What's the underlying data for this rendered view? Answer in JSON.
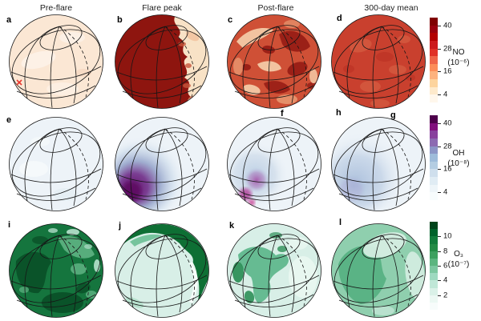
{
  "figure": {
    "columns": [
      "Pre-flare",
      "Flare peak",
      "Post-flare",
      "300-day mean"
    ],
    "panels": [
      {
        "label": "a"
      },
      {
        "label": "b"
      },
      {
        "label": "c"
      },
      {
        "label": "d"
      },
      {
        "label": "e"
      },
      {
        "label": "f"
      },
      {
        "label": "g"
      },
      {
        "label": "h"
      },
      {
        "label": "i"
      },
      {
        "label": "j"
      },
      {
        "label": "k"
      },
      {
        "label": "l"
      }
    ]
  },
  "colorbars": [
    {
      "species": "NO",
      "unit": "(10⁻⁶)",
      "ticks": [
        40,
        28,
        16,
        4
      ],
      "range": [
        0,
        44
      ],
      "colormap": "OrRd",
      "colors": [
        "#7f0000",
        "#99000d",
        "#b30000",
        "#cc1a1c",
        "#e03127",
        "#ef6548",
        "#fc8d59",
        "#fdb27e",
        "#fdd49e",
        "#feeacc",
        "#fff7ec"
      ]
    },
    {
      "species": "OH",
      "unit": "(10⁻⁸)",
      "ticks": [
        40,
        28,
        16,
        4
      ],
      "range": [
        0,
        44
      ],
      "colormap": "BuPu",
      "colors": [
        "#4d004b",
        "#810f7c",
        "#88419d",
        "#8c6bb1",
        "#8c96c6",
        "#9ebcda",
        "#b4cde2",
        "#cfdfed",
        "#e0ecf4",
        "#eef5f9",
        "#f7fcfd"
      ]
    },
    {
      "species": "O₃",
      "unit": "(10⁻⁷)",
      "ticks": [
        10,
        8,
        6,
        4,
        2
      ],
      "range": [
        0,
        12
      ],
      "colormap": "BuGn",
      "colors": [
        "#00441b",
        "#00632b",
        "#127c3b",
        "#238b45",
        "#3da05f",
        "#5bb57f",
        "#7cc7a0",
        "#9ed9c0",
        "#c0e7d7",
        "#daf1e8",
        "#ecf8f3",
        "#f7fcfb"
      ]
    }
  ],
  "palette": {
    "no": {
      "pre_base": "#fbe7d4",
      "day_dark": "#8e150f",
      "night_pale": "#f8e2c6",
      "post_base": "#cf5036",
      "post_dark": "#9b2017",
      "post_light": "#f2c3a0",
      "mean_base": "#c9402e"
    },
    "oh": {
      "base": "#edf3f8",
      "core": "#5e0a63",
      "mean_core": "#a9bedb",
      "magenta": "#a75fae"
    },
    "o3": {
      "pre_dark": "#15753e",
      "pre_darker": "#0a5329",
      "pale": "#d8efe7",
      "crescent": "#0e6f34",
      "swath": "#66bb92",
      "mean_base": "#8fcfae",
      "mean_mid": "#5ab385"
    },
    "marker_red": "#e8372e",
    "graticule": "#161616"
  },
  "chart_data": [
    {
      "type": "heatmap",
      "projection": "orthographic globe",
      "species": "NO",
      "units": "volume mixing ratio (10⁻⁶)",
      "colormap": "OrRd",
      "range": [
        0,
        44
      ],
      "colorbar_ticks": [
        4,
        16,
        28,
        40
      ],
      "panels": [
        {
          "label": "a",
          "column": "Pre-flare",
          "approx_values": "~1–3 everywhere (near-white globe)",
          "annotation": "red × marks flare irradiation point on lower-left limb"
        },
        {
          "label": "b",
          "column": "Flare peak",
          "approx_values": "dayside saturated ≥44 (dark red) over ~75% of disk; pale nightside crescent ~2–8 along right limb with jagged boundary"
        },
        {
          "label": "c",
          "column": "Post-flare",
          "approx_values": "turbulent mottled field ~12–44; dark ~40 filaments upper-right/centre, light ~10–16 swirls lower-left"
        },
        {
          "label": "d",
          "column": "300-day mean",
          "approx_values": "fairly uniform ~28–34 with subtle patchiness"
        }
      ]
    },
    {
      "type": "heatmap",
      "projection": "orthographic globe",
      "species": "OH",
      "units": "volume mixing ratio (10⁻⁸)",
      "colormap": "BuPu",
      "range": [
        0,
        44
      ],
      "colorbar_ticks": [
        4,
        16,
        28,
        40
      ],
      "panels": [
        {
          "label": "e",
          "column": "Pre-flare",
          "approx_values": "~1–2 everywhere (near-white globe)"
        },
        {
          "label": "f",
          "column": "Flare peak",
          "approx_values": "plume peaking ~40+ (dark purple) at lower-left limb, smoothly decaying to ~2 toward upper right"
        },
        {
          "label": "g",
          "column": "Post-flare",
          "approx_values": "weak residual plume ~8–20 (pale blue) lower-left with magenta maxima ~28 near lower-left limb"
        },
        {
          "label": "h",
          "column": "300-day mean",
          "approx_values": "smooth enhancement up to ~10–14 over lower-left hemisphere fading to ~2"
        }
      ]
    },
    {
      "type": "heatmap",
      "projection": "orthographic globe",
      "species": "O₃",
      "units": "volume mixing ratio (10⁻⁷)",
      "colormap": "BuGn",
      "range": [
        0,
        12
      ],
      "colorbar_ticks": [
        2,
        4,
        6,
        8,
        10
      ],
      "panels": [
        {
          "label": "i",
          "column": "Pre-flare",
          "approx_values": "~8–12 mottled dark green over whole disk"
        },
        {
          "label": "j",
          "column": "Flare peak",
          "approx_values": "interior depleted to ~2–3; ~9–11 dark crescent along top and right limb with thin near-zero white stripe inside it"
        },
        {
          "label": "k",
          "column": "Post-flare",
          "approx_values": "recovering: irregular ~5–7 swath upper-left/centre with ~8–9 patches on left limb over ~2–3 background"
        },
        {
          "label": "l",
          "column": "300-day mean",
          "approx_values": "~4–6 over most of disk, ~2–3 pale polar cap and right-limb band"
        }
      ]
    }
  ]
}
